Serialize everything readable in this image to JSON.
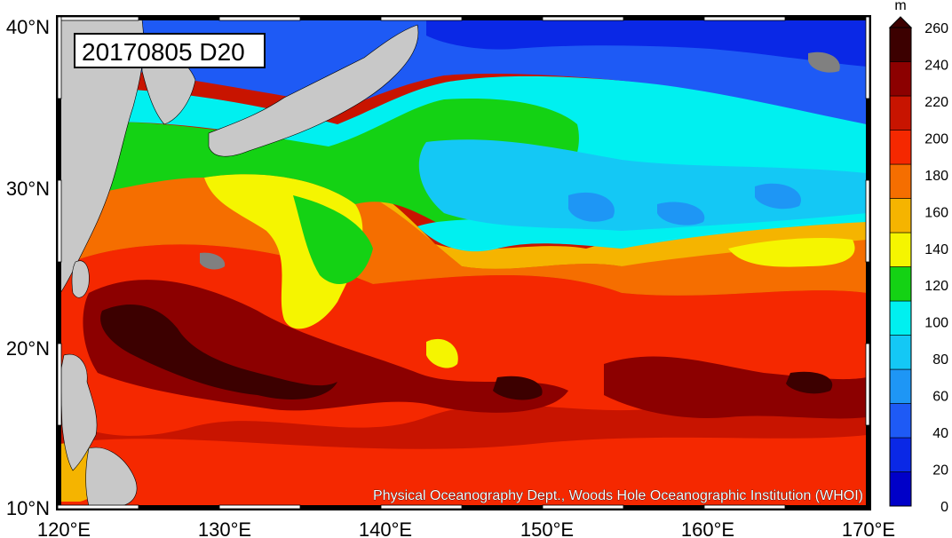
{
  "map": {
    "title": "20170805 D20",
    "credit": "Physical Oceanography Dept., Woods Hole Oceanographic Institution (WHOI)",
    "lon_range": [
      120,
      170
    ],
    "lat_range": [
      10,
      40
    ],
    "lon_ticks": [
      "120°E",
      "130°E",
      "140°E",
      "150°E",
      "160°E",
      "170°E"
    ],
    "lat_ticks": [
      "40°N",
      "30°N",
      "20°N",
      "10°N"
    ]
  },
  "colorbar": {
    "unit": "m",
    "ticks": [
      "260",
      "240",
      "220",
      "200",
      "180",
      "160",
      "140",
      "120",
      "100",
      "80",
      "60",
      "40",
      "20",
      "0"
    ],
    "colors": [
      "#0000c8",
      "#0a28e6",
      "#1e5af5",
      "#1e96f5",
      "#14c8f5",
      "#00f0f0",
      "#14d214",
      "#f5f500",
      "#f5b400",
      "#f56e00",
      "#f52800",
      "#c81400",
      "#8c0000",
      "#3c0000"
    ],
    "land_color": "#c8c8c8",
    "missing_color": "#808080"
  }
}
